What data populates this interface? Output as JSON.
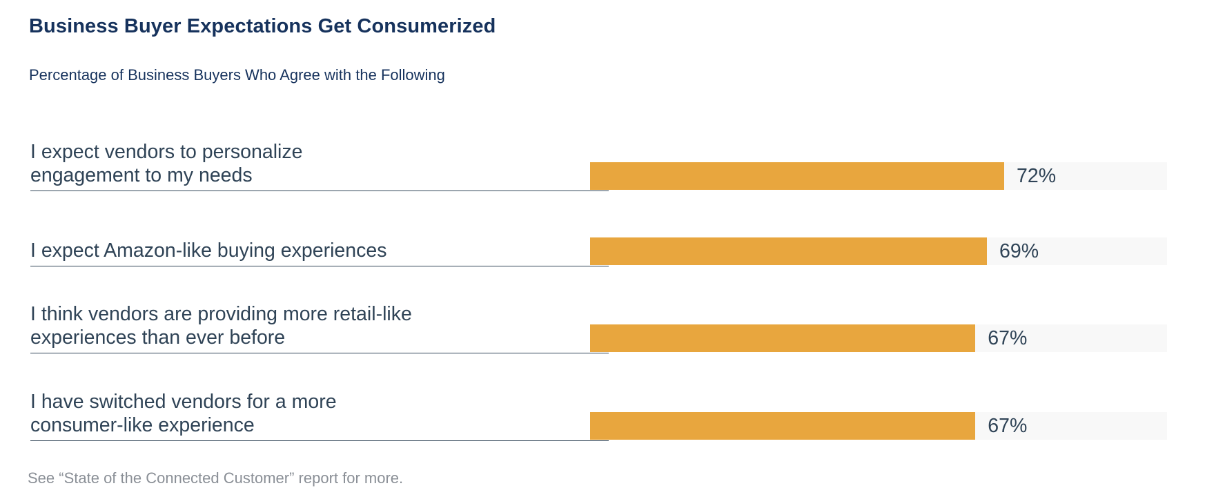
{
  "chart_data": {
    "type": "bar",
    "orientation": "horizontal",
    "title": "Business Buyer Expectations Get Consumerized",
    "subtitle": "Percentage of Business Buyers Who Agree with the Following",
    "categories": [
      "I expect vendors to personalize\nengagement to my needs",
      "I expect Amazon-like buying experiences",
      "I think vendors are providing more retail-like\nexperiences than ever before",
      "I have switched vendors for a more\nconsumer-like experience"
    ],
    "values": [
      72,
      69,
      67,
      67
    ],
    "value_labels": [
      "72%",
      "69%",
      "67%",
      "67%"
    ],
    "bar_color": "#e8a63e",
    "track_color": "#f8f8f8",
    "xlim": [
      0,
      100
    ],
    "grid": false,
    "legend": "none",
    "footnote": "See “State of the Connected Customer” report for more."
  }
}
